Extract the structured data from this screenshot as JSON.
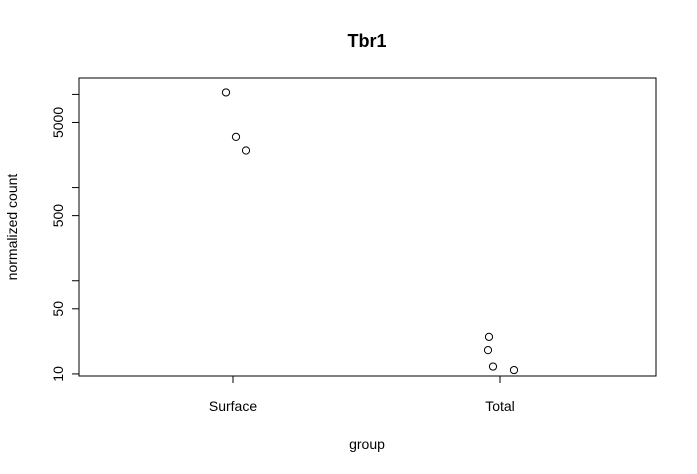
{
  "chart_data": {
    "type": "scatter",
    "title": "Tbr1",
    "xlabel": "group",
    "ylabel": "normalized count",
    "y_scale": "log",
    "categories": [
      "Surface",
      "Total"
    ],
    "ylim": [
      9.5,
      15000
    ],
    "y_ticks": [
      10,
      50,
      500,
      5000
    ],
    "y_tick_labels": [
      "10",
      "50",
      "500",
      "5000"
    ],
    "series": [
      {
        "points": [
          {
            "group": "Surface",
            "y": 10500
          },
          {
            "group": "Surface",
            "y": 3500
          },
          {
            "group": "Surface",
            "y": 2500
          },
          {
            "group": "Total",
            "y": 25
          },
          {
            "group": "Total",
            "y": 18
          },
          {
            "group": "Total",
            "y": 12
          },
          {
            "group": "Total",
            "y": 11
          }
        ]
      }
    ],
    "grid": false,
    "marker": "open-circle"
  }
}
